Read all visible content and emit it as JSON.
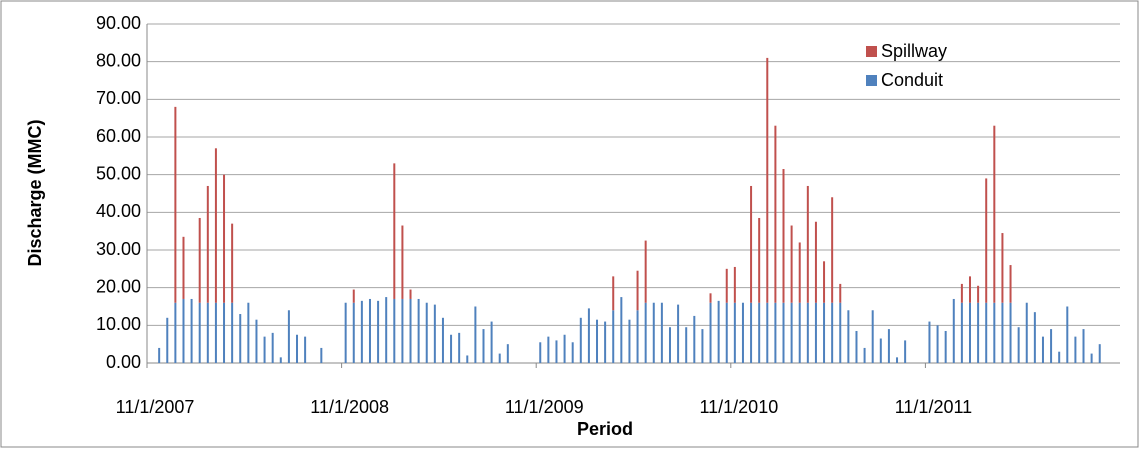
{
  "chart_data": {
    "type": "stacked-bar",
    "x_label": "Period",
    "y_label": "Discharge (MMC)",
    "categories": [
      "11/1/2007",
      null,
      null,
      null,
      null,
      null,
      null,
      null,
      null,
      null,
      null,
      null,
      null,
      null,
      null,
      null,
      null,
      null,
      null,
      null,
      null,
      null,
      null,
      null,
      "11/1/2008",
      null,
      null,
      null,
      null,
      null,
      null,
      null,
      null,
      null,
      null,
      null,
      null,
      null,
      null,
      null,
      null,
      null,
      null,
      null,
      null,
      null,
      null,
      null,
      "11/1/2009",
      null,
      null,
      null,
      null,
      null,
      null,
      null,
      null,
      null,
      null,
      null,
      null,
      null,
      null,
      null,
      null,
      null,
      null,
      null,
      null,
      null,
      null,
      null,
      "11/1/2010",
      null,
      null,
      null,
      null,
      null,
      null,
      null,
      null,
      null,
      null,
      null,
      null,
      null,
      null,
      null,
      null,
      null,
      null,
      null,
      null,
      null,
      null,
      null,
      "11/1/2011",
      null,
      null,
      null,
      null,
      null,
      null,
      null,
      null,
      null,
      null,
      null,
      null,
      null,
      null,
      null,
      null,
      null,
      null,
      null,
      null,
      null,
      null,
      null
    ],
    "series": [
      {
        "name": "Spillway",
        "color": "#c0504d",
        "values": [
          0,
          0,
          0,
          52,
          16.5,
          0,
          22.5,
          31,
          41,
          34,
          21,
          0,
          0,
          0,
          0,
          0,
          0,
          0,
          0,
          0,
          0,
          0,
          0,
          0,
          0,
          3.5,
          0,
          0,
          0,
          0,
          36,
          19.5,
          2.5,
          0,
          0,
          0,
          0,
          0,
          0,
          0,
          0,
          0,
          0,
          0,
          0,
          0,
          0,
          0,
          0,
          0,
          0,
          0,
          0,
          0,
          0,
          0,
          0,
          9,
          0,
          0,
          10.5,
          16.5,
          0,
          0,
          0,
          0,
          0,
          0,
          0,
          2.5,
          0,
          9,
          9.5,
          0,
          31,
          22.5,
          65,
          47,
          35.5,
          20.5,
          16,
          31,
          21.5,
          11,
          28,
          5,
          0,
          0,
          0,
          0,
          0,
          0,
          0,
          0,
          0,
          0,
          0,
          0,
          0,
          0,
          5,
          7,
          4.5,
          33,
          47,
          18.5,
          10,
          0,
          0,
          0,
          0,
          0,
          0,
          0,
          0,
          0,
          0,
          0,
          0,
          0
        ]
      },
      {
        "name": "Conduit",
        "color": "#4f81bd",
        "values": [
          0,
          4,
          12,
          16,
          17,
          17,
          16,
          16,
          16,
          16,
          16,
          13,
          16,
          11.5,
          7,
          8,
          1.5,
          14,
          7.5,
          7,
          0,
          4,
          0,
          0,
          16,
          16,
          16.5,
          17,
          16.5,
          17.5,
          17,
          17,
          17,
          17,
          16,
          15.5,
          12,
          7.5,
          8,
          2,
          15,
          9,
          11,
          2.5,
          5,
          0,
          0,
          0,
          5.5,
          7,
          6,
          7.5,
          5.5,
          12,
          14.5,
          11.5,
          11,
          14,
          17.5,
          11.5,
          14,
          16,
          16,
          16,
          9.5,
          15.5,
          9.5,
          12.5,
          9,
          16,
          16.5,
          16,
          16,
          16,
          16,
          16,
          16,
          16,
          16,
          16,
          16,
          16,
          16,
          16,
          16,
          16,
          14,
          8.5,
          4,
          14,
          6.5,
          9,
          1.5,
          6,
          0,
          0,
          11,
          10,
          8.5,
          17,
          16,
          16,
          16,
          16,
          16,
          16,
          16,
          9.5,
          16,
          13.5,
          7,
          9,
          3,
          15,
          7,
          9,
          2.5,
          5,
          0,
          0
        ]
      }
    ],
    "ylim": [
      0,
      90
    ],
    "yticks": [
      {
        "value": 0,
        "label": "0.00"
      },
      {
        "value": 10,
        "label": "10.00"
      },
      {
        "value": 20,
        "label": "20.00"
      },
      {
        "value": 30,
        "label": "30.00"
      },
      {
        "value": 40,
        "label": "40.00"
      },
      {
        "value": 50,
        "label": "50.00"
      },
      {
        "value": 60,
        "label": "60.00"
      },
      {
        "value": 70,
        "label": "70.00"
      },
      {
        "value": 80,
        "label": "80.00"
      },
      {
        "value": 90,
        "label": "90.00"
      }
    ],
    "grid": true,
    "legend": "top-right"
  }
}
